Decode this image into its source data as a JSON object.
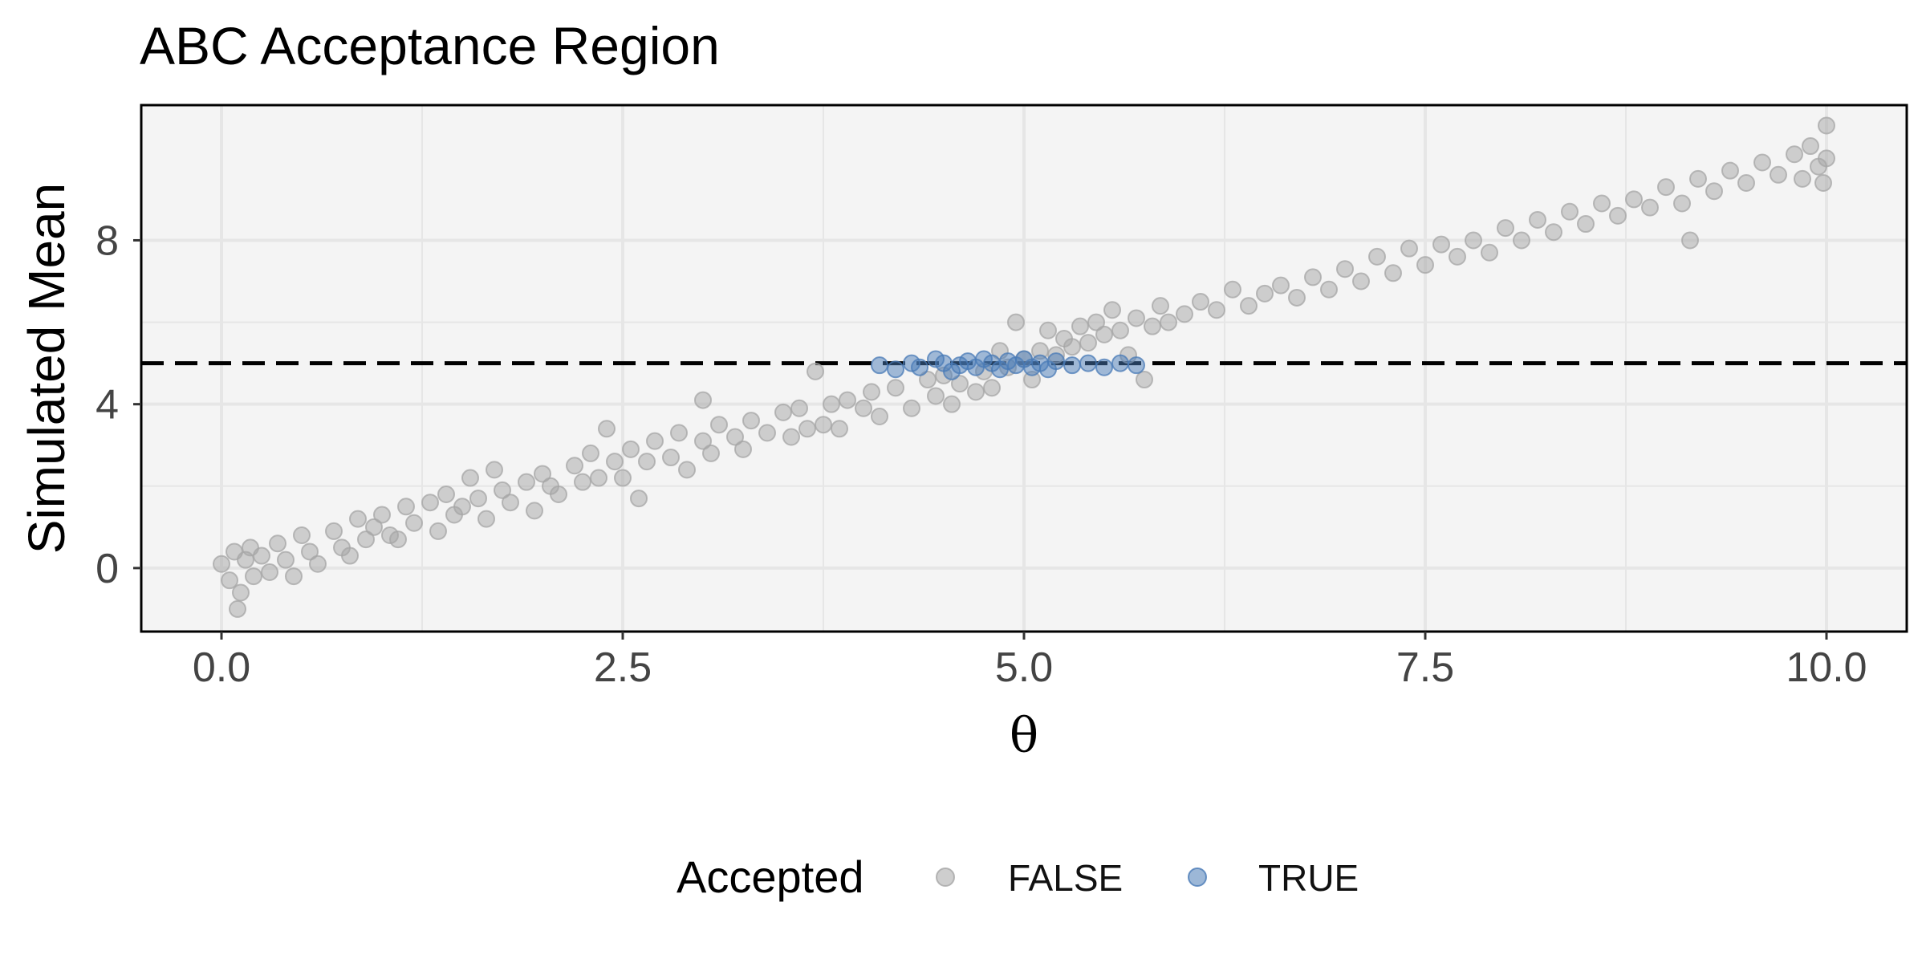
{
  "chart_data": {
    "type": "scatter",
    "title": "ABC Acceptance Region",
    "xlabel": "θ",
    "ylabel": "Simulated Mean",
    "xlim": [
      -0.5,
      10.5
    ],
    "ylim": [
      -1.55,
      11.3
    ],
    "x_ticks": [
      0.0,
      2.5,
      5.0,
      7.5,
      10.0
    ],
    "x_tick_labels": [
      "0.0",
      "2.5",
      "5.0",
      "7.5",
      "10.0"
    ],
    "y_ticks": [
      0,
      4,
      8
    ],
    "y_tick_labels": [
      "0",
      "4",
      "8"
    ],
    "grid": true,
    "reference_line": {
      "y": 5,
      "style": "dashed",
      "color": "#000000"
    },
    "legend": {
      "title": "Accepted",
      "position": "bottom",
      "entries": [
        {
          "label": "FALSE",
          "color": "#a6a6a6"
        },
        {
          "label": "TRUE",
          "color": "#4a7bb7"
        }
      ]
    },
    "colors": {
      "panel_background": "#f4f4f4",
      "gridline": "#e6e6e6",
      "false_points": "#a6a6a6",
      "true_points": "#4a7bb7"
    },
    "point_opacity": 0.5,
    "series": [
      {
        "name": "FALSE",
        "color": "#a6a6a6",
        "points": [
          [
            0.0,
            0.1
          ],
          [
            0.05,
            -0.3
          ],
          [
            0.08,
            0.4
          ],
          [
            0.12,
            -0.6
          ],
          [
            0.15,
            0.2
          ],
          [
            0.18,
            0.5
          ],
          [
            0.2,
            -0.2
          ],
          [
            0.1,
            -1.0
          ],
          [
            0.25,
            0.3
          ],
          [
            0.3,
            -0.1
          ],
          [
            0.35,
            0.6
          ],
          [
            0.4,
            0.2
          ],
          [
            0.45,
            -0.2
          ],
          [
            0.5,
            0.8
          ],
          [
            0.55,
            0.4
          ],
          [
            0.6,
            0.1
          ],
          [
            0.7,
            0.9
          ],
          [
            0.75,
            0.5
          ],
          [
            0.8,
            0.3
          ],
          [
            0.85,
            1.2
          ],
          [
            0.9,
            0.7
          ],
          [
            0.95,
            1.0
          ],
          [
            1.0,
            1.3
          ],
          [
            1.05,
            0.8
          ],
          [
            1.1,
            0.7
          ],
          [
            1.15,
            1.5
          ],
          [
            1.2,
            1.1
          ],
          [
            1.3,
            1.6
          ],
          [
            1.35,
            0.9
          ],
          [
            1.4,
            1.8
          ],
          [
            1.45,
            1.3
          ],
          [
            1.5,
            1.5
          ],
          [
            1.55,
            2.2
          ],
          [
            1.6,
            1.7
          ],
          [
            1.65,
            1.2
          ],
          [
            1.7,
            2.4
          ],
          [
            1.75,
            1.9
          ],
          [
            1.8,
            1.6
          ],
          [
            1.9,
            2.1
          ],
          [
            1.95,
            1.4
          ],
          [
            2.0,
            2.3
          ],
          [
            2.05,
            2.0
          ],
          [
            2.1,
            1.8
          ],
          [
            2.2,
            2.5
          ],
          [
            2.25,
            2.1
          ],
          [
            2.3,
            2.8
          ],
          [
            2.35,
            2.2
          ],
          [
            2.4,
            3.4
          ],
          [
            2.45,
            2.6
          ],
          [
            2.5,
            2.2
          ],
          [
            2.55,
            2.9
          ],
          [
            2.6,
            1.7
          ],
          [
            2.65,
            2.6
          ],
          [
            2.7,
            3.1
          ],
          [
            2.8,
            2.7
          ],
          [
            2.85,
            3.3
          ],
          [
            2.9,
            2.4
          ],
          [
            3.0,
            3.1
          ],
          [
            3.0,
            4.1
          ],
          [
            3.05,
            2.8
          ],
          [
            3.1,
            3.5
          ],
          [
            3.2,
            3.2
          ],
          [
            3.25,
            2.9
          ],
          [
            3.3,
            3.6
          ],
          [
            3.4,
            3.3
          ],
          [
            3.5,
            3.8
          ],
          [
            3.55,
            3.2
          ],
          [
            3.6,
            3.9
          ],
          [
            3.65,
            3.4
          ],
          [
            3.7,
            4.8
          ],
          [
            3.75,
            3.5
          ],
          [
            3.8,
            4.0
          ],
          [
            3.85,
            3.4
          ],
          [
            3.9,
            4.1
          ],
          [
            4.0,
            3.9
          ],
          [
            4.05,
            4.3
          ],
          [
            4.1,
            3.7
          ],
          [
            4.2,
            4.4
          ],
          [
            4.3,
            3.9
          ],
          [
            4.4,
            4.6
          ],
          [
            4.45,
            4.2
          ],
          [
            4.5,
            4.7
          ],
          [
            4.55,
            4.0
          ],
          [
            4.6,
            4.5
          ],
          [
            4.7,
            4.3
          ],
          [
            4.75,
            4.8
          ],
          [
            4.8,
            4.4
          ],
          [
            4.85,
            5.3
          ],
          [
            4.9,
            4.9
          ],
          [
            4.95,
            6.0
          ],
          [
            5.0,
            5.1
          ],
          [
            5.05,
            4.6
          ],
          [
            5.1,
            5.3
          ],
          [
            5.15,
            5.8
          ],
          [
            5.2,
            5.2
          ],
          [
            5.25,
            5.6
          ],
          [
            5.3,
            5.4
          ],
          [
            5.35,
            5.9
          ],
          [
            5.4,
            5.5
          ],
          [
            5.45,
            6.0
          ],
          [
            5.5,
            5.7
          ],
          [
            5.55,
            6.3
          ],
          [
            5.6,
            5.8
          ],
          [
            5.65,
            5.2
          ],
          [
            5.7,
            6.1
          ],
          [
            5.75,
            4.6
          ],
          [
            5.8,
            5.9
          ],
          [
            5.85,
            6.4
          ],
          [
            5.9,
            6.0
          ],
          [
            6.0,
            6.2
          ],
          [
            6.1,
            6.5
          ],
          [
            6.2,
            6.3
          ],
          [
            6.3,
            6.8
          ],
          [
            6.4,
            6.4
          ],
          [
            6.5,
            6.7
          ],
          [
            6.6,
            6.9
          ],
          [
            6.7,
            6.6
          ],
          [
            6.8,
            7.1
          ],
          [
            6.9,
            6.8
          ],
          [
            7.0,
            7.3
          ],
          [
            7.1,
            7.0
          ],
          [
            7.2,
            7.6
          ],
          [
            7.3,
            7.2
          ],
          [
            7.4,
            7.8
          ],
          [
            7.5,
            7.4
          ],
          [
            7.6,
            7.9
          ],
          [
            7.7,
            7.6
          ],
          [
            7.8,
            8.0
          ],
          [
            7.9,
            7.7
          ],
          [
            8.0,
            8.3
          ],
          [
            8.1,
            8.0
          ],
          [
            8.2,
            8.5
          ],
          [
            8.3,
            8.2
          ],
          [
            8.4,
            8.7
          ],
          [
            8.5,
            8.4
          ],
          [
            8.6,
            8.9
          ],
          [
            8.7,
            8.6
          ],
          [
            8.8,
            9.0
          ],
          [
            8.9,
            8.8
          ],
          [
            9.0,
            9.3
          ],
          [
            9.1,
            8.9
          ],
          [
            9.15,
            8.0
          ],
          [
            9.2,
            9.5
          ],
          [
            9.3,
            9.2
          ],
          [
            9.4,
            9.7
          ],
          [
            9.5,
            9.4
          ],
          [
            9.6,
            9.9
          ],
          [
            9.7,
            9.6
          ],
          [
            9.8,
            10.1
          ],
          [
            9.85,
            9.5
          ],
          [
            9.9,
            10.3
          ],
          [
            9.95,
            9.8
          ],
          [
            10.0,
            10.0
          ],
          [
            10.0,
            10.8
          ],
          [
            9.98,
            9.4
          ]
        ]
      },
      {
        "name": "TRUE",
        "color": "#4a7bb7",
        "points": [
          [
            4.1,
            4.95
          ],
          [
            4.2,
            4.85
          ],
          [
            4.3,
            5.0
          ],
          [
            4.35,
            4.9
          ],
          [
            4.45,
            5.1
          ],
          [
            4.5,
            5.0
          ],
          [
            4.55,
            4.8
          ],
          [
            4.6,
            4.95
          ],
          [
            4.65,
            5.05
          ],
          [
            4.7,
            4.9
          ],
          [
            4.75,
            5.1
          ],
          [
            4.8,
            5.0
          ],
          [
            4.85,
            4.85
          ],
          [
            4.9,
            5.05
          ],
          [
            4.95,
            4.95
          ],
          [
            5.0,
            5.1
          ],
          [
            5.05,
            4.9
          ],
          [
            5.1,
            5.0
          ],
          [
            5.15,
            4.85
          ],
          [
            5.2,
            5.05
          ],
          [
            5.3,
            4.95
          ],
          [
            5.4,
            5.0
          ],
          [
            5.5,
            4.9
          ],
          [
            5.6,
            5.0
          ],
          [
            5.7,
            4.95
          ]
        ]
      }
    ]
  }
}
